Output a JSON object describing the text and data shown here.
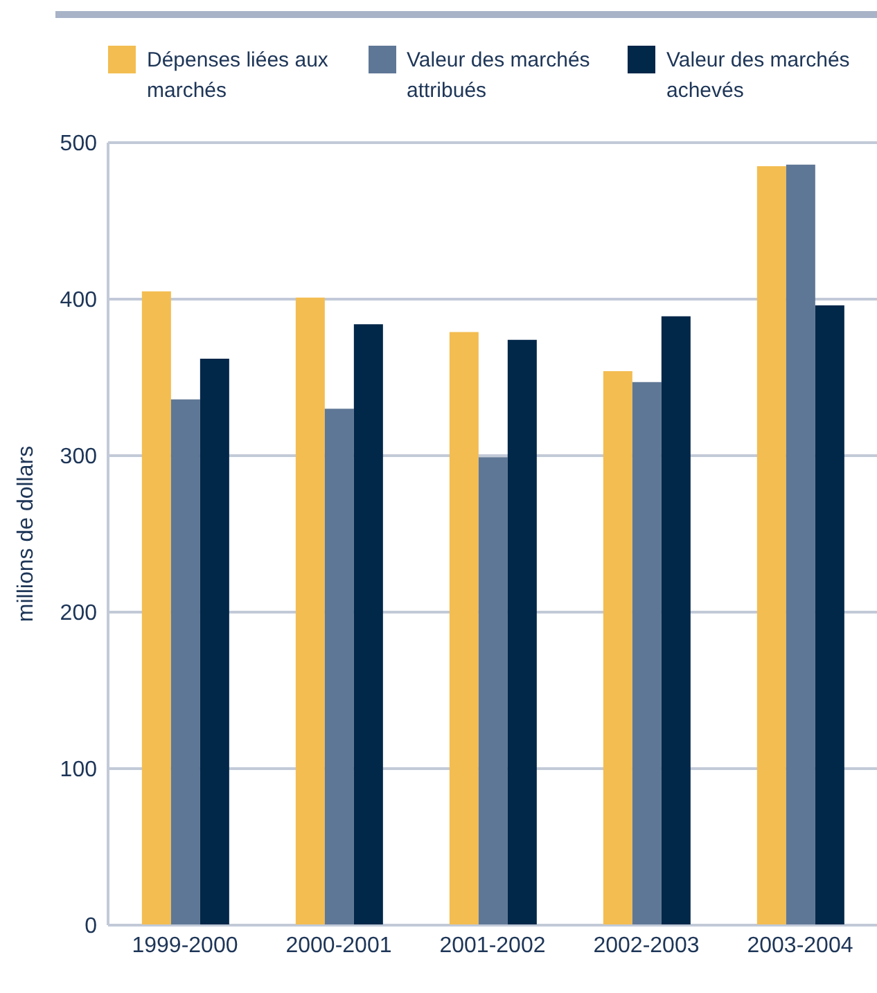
{
  "chart_data": {
    "type": "bar",
    "ylabel": "millions de dollars",
    "categories": [
      "1999-2000",
      "2000-2001",
      "2001-2002",
      "2002-2003",
      "2003-2004"
    ],
    "series": [
      {
        "name": "Dépenses liées aux marchés",
        "color": "#f3bd51",
        "values": [
          405,
          401,
          379,
          354,
          485
        ]
      },
      {
        "name": "Valeur des marchés attribués",
        "color": "#5f7796",
        "values": [
          336,
          330,
          299,
          347,
          486
        ]
      },
      {
        "name": "Valeur des marchés achevés",
        "color": "#012749",
        "values": [
          362,
          384,
          374,
          389,
          396
        ]
      }
    ],
    "ylim": [
      0,
      500
    ],
    "yticks": [
      0,
      100,
      200,
      300,
      400,
      500
    ],
    "grid": "y",
    "legend": "top"
  }
}
